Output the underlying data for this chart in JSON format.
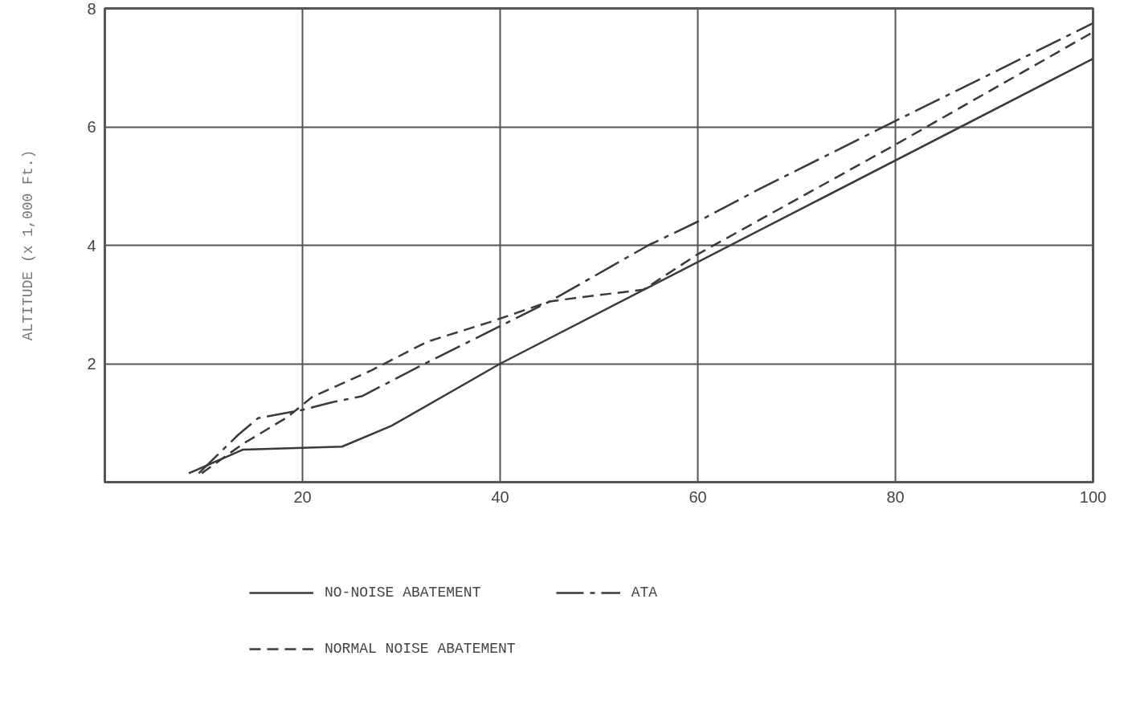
{
  "chart_data": {
    "type": "line",
    "ylabel": "ALTITUDE (x 1,000 Ft.)",
    "xlim": [
      0,
      100
    ],
    "ylim": [
      0,
      8
    ],
    "xticks": [
      20,
      40,
      60,
      80,
      100
    ],
    "yticks": [
      2,
      4,
      6,
      8
    ],
    "grid": true,
    "legend": "bottom",
    "marker": "none",
    "series": [
      {
        "name": "NO-NOISE ABATEMENT",
        "color": "#3a3a3a",
        "line_style": "solid",
        "x": [
          8.5,
          14,
          24,
          29,
          40,
          100
        ],
        "values": [
          0.15,
          0.55,
          0.6,
          0.95,
          2.0,
          7.15
        ]
      },
      {
        "name": "ATA",
        "color": "#3a3a3a",
        "line_style": "dashdot",
        "x": [
          9.5,
          13.5,
          15.5,
          20,
          23,
          26,
          32,
          45,
          55,
          60,
          66,
          80,
          100
        ],
        "values": [
          0.15,
          0.8,
          1.08,
          1.22,
          1.35,
          1.45,
          1.97,
          3.05,
          4.0,
          4.4,
          4.93,
          6.1,
          7.75
        ]
      },
      {
        "name": "NORMAL NOISE ABATEMENT",
        "color": "#3a3a3a",
        "line_style": "dashed",
        "x": [
          9.8,
          14,
          18.4,
          21,
          27,
          32.6,
          38.9,
          45,
          48,
          54.5,
          60,
          80,
          100
        ],
        "values": [
          0.15,
          0.65,
          1.09,
          1.44,
          1.89,
          2.37,
          2.7,
          3.05,
          3.12,
          3.25,
          3.85,
          5.7,
          7.6
        ]
      }
    ]
  }
}
